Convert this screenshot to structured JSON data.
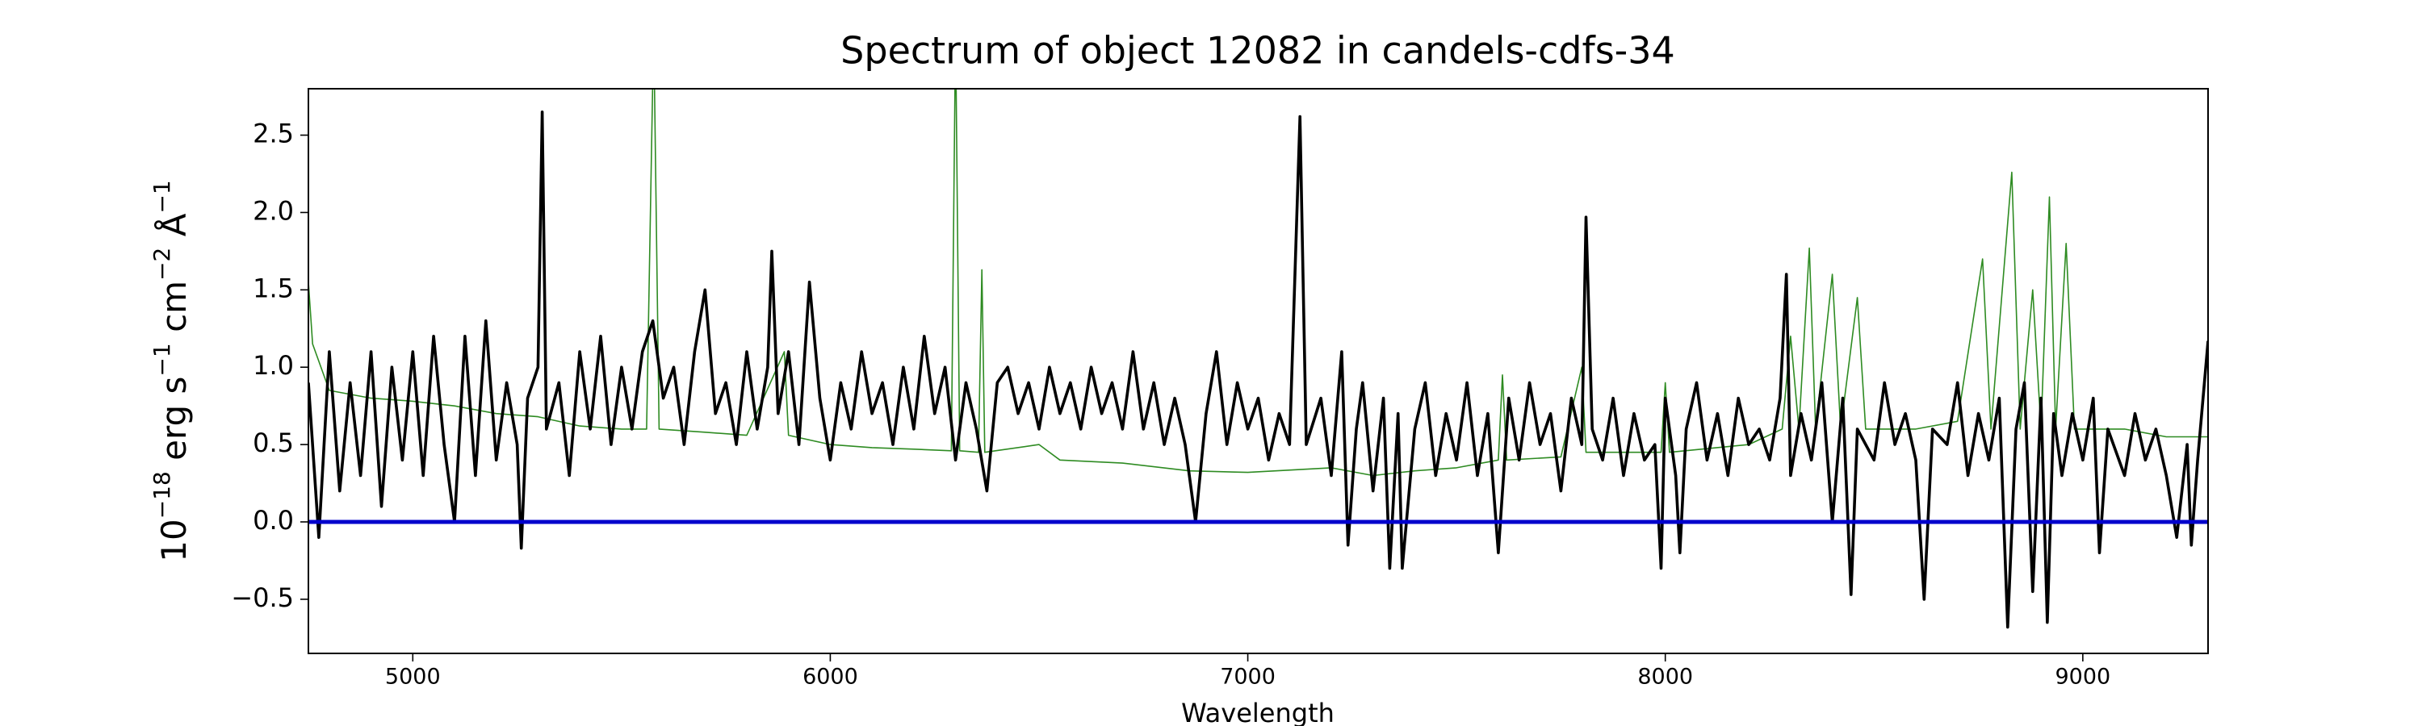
{
  "chart_data": {
    "type": "line",
    "title": "Spectrum of object 12082 in candels-cdfs-34",
    "xlabel": "Wavelength",
    "ylabel": [
      {
        "text": "10",
        "sup": "−18"
      },
      {
        "text": " erg s",
        "sup": "−1"
      },
      {
        "text": " cm",
        "sup": "−2"
      },
      {
        "text": " Å",
        "sup": "−1"
      }
    ],
    "xlim": [
      4750,
      9300
    ],
    "ylim": [
      -0.85,
      2.8
    ],
    "xticks": [
      5000,
      6000,
      7000,
      8000,
      9000
    ],
    "yticks": [
      {
        "value": -0.5,
        "label": "−0.5"
      },
      {
        "value": 0,
        "label": "0.0"
      },
      0.5,
      {
        "value": 1,
        "label": "1.0"
      },
      1.5,
      {
        "value": 2,
        "label": "2.0"
      },
      2.5
    ],
    "grid": false,
    "series": [
      {
        "color": "#2e8b22",
        "width": "thin",
        "x": [
          4750,
          4760,
          4800,
          4900,
          5000,
          5100,
          5200,
          5300,
          5400,
          5500,
          5560,
          5577,
          5590,
          5700,
          5800,
          5890,
          5900,
          6000,
          6100,
          6200,
          6290,
          6300,
          6310,
          6355,
          6363,
          6370,
          6500,
          6550,
          6700,
          6860,
          7000,
          7200,
          7300,
          7400,
          7500,
          7600,
          7610,
          7620,
          7750,
          7800,
          7810,
          7900,
          7990,
          8000,
          8010,
          8200,
          8280,
          8300,
          8320,
          8345,
          8360,
          8400,
          8420,
          8460,
          8480,
          8600,
          8700,
          8760,
          8780,
          8830,
          8850,
          8880,
          8900,
          8920,
          8935,
          8960,
          8980,
          9100,
          9200,
          9300
        ],
        "values": [
          1.55,
          1.15,
          0.85,
          0.8,
          0.78,
          0.75,
          0.7,
          0.68,
          0.62,
          0.6,
          0.6,
          3.2,
          0.6,
          0.58,
          0.56,
          1.1,
          0.56,
          0.5,
          0.48,
          0.47,
          0.46,
          3.2,
          0.46,
          0.45,
          1.63,
          0.45,
          0.5,
          0.4,
          0.38,
          0.33,
          0.32,
          0.35,
          0.3,
          0.33,
          0.35,
          0.4,
          0.95,
          0.4,
          0.42,
          1.0,
          0.45,
          0.45,
          0.45,
          0.9,
          0.45,
          0.5,
          0.6,
          1.2,
          0.6,
          1.77,
          0.6,
          1.6,
          0.6,
          1.45,
          0.6,
          0.6,
          0.65,
          1.7,
          0.6,
          2.26,
          0.6,
          1.5,
          0.6,
          2.1,
          0.6,
          1.8,
          0.6,
          0.6,
          0.55,
          0.55
        ]
      },
      {
        "color": "#000000",
        "width": "medium",
        "x": [
          4750,
          4775,
          4800,
          4825,
          4850,
          4875,
          4900,
          4925,
          4950,
          4975,
          5000,
          5025,
          5050,
          5075,
          5100,
          5125,
          5150,
          5175,
          5200,
          5225,
          5250,
          5260,
          5275,
          5300,
          5310,
          5320,
          5350,
          5375,
          5400,
          5425,
          5450,
          5475,
          5500,
          5525,
          5550,
          5575,
          5600,
          5625,
          5650,
          5675,
          5700,
          5725,
          5750,
          5775,
          5800,
          5825,
          5850,
          5860,
          5875,
          5900,
          5925,
          5950,
          5975,
          6000,
          6025,
          6050,
          6075,
          6100,
          6125,
          6150,
          6175,
          6200,
          6225,
          6250,
          6275,
          6300,
          6325,
          6350,
          6375,
          6400,
          6425,
          6450,
          6475,
          6500,
          6525,
          6550,
          6575,
          6600,
          6625,
          6650,
          6675,
          6700,
          6725,
          6750,
          6775,
          6800,
          6825,
          6850,
          6875,
          6900,
          6925,
          6950,
          6975,
          7000,
          7025,
          7050,
          7075,
          7100,
          7125,
          7140,
          7175,
          7200,
          7225,
          7240,
          7260,
          7275,
          7300,
          7325,
          7340,
          7360,
          7370,
          7400,
          7425,
          7450,
          7475,
          7500,
          7525,
          7550,
          7575,
          7600,
          7625,
          7650,
          7675,
          7700,
          7725,
          7750,
          7775,
          7800,
          7810,
          7825,
          7850,
          7875,
          7900,
          7925,
          7950,
          7975,
          7990,
          8000,
          8025,
          8035,
          8050,
          8075,
          8100,
          8125,
          8150,
          8175,
          8200,
          8225,
          8250,
          8275,
          8290,
          8300,
          8325,
          8350,
          8375,
          8400,
          8425,
          8445,
          8460,
          8500,
          8525,
          8550,
          8575,
          8600,
          8620,
          8640,
          8675,
          8700,
          8725,
          8750,
          8775,
          8800,
          8820,
          8840,
          8860,
          8880,
          8900,
          8915,
          8930,
          8950,
          8975,
          9000,
          9025,
          9040,
          9060,
          9100,
          9125,
          9150,
          9175,
          9200,
          9225,
          9250,
          9260,
          9275,
          9300
        ],
        "values": [
          0.9,
          -0.1,
          1.1,
          0.2,
          0.9,
          0.3,
          1.1,
          0.1,
          1.0,
          0.4,
          1.1,
          0.3,
          1.2,
          0.5,
          0.0,
          1.2,
          0.3,
          1.3,
          0.4,
          0.9,
          0.5,
          -0.17,
          0.8,
          1.0,
          2.65,
          0.6,
          0.9,
          0.3,
          1.1,
          0.6,
          1.2,
          0.5,
          1.0,
          0.6,
          1.1,
          1.3,
          0.8,
          1.0,
          0.5,
          1.1,
          1.5,
          0.7,
          0.9,
          0.5,
          1.1,
          0.6,
          1.0,
          1.75,
          0.7,
          1.1,
          0.5,
          1.55,
          0.8,
          0.4,
          0.9,
          0.6,
          1.1,
          0.7,
          0.9,
          0.5,
          1.0,
          0.6,
          1.2,
          0.7,
          1.0,
          0.4,
          0.9,
          0.6,
          0.2,
          0.9,
          1.0,
          0.7,
          0.9,
          0.6,
          1.0,
          0.7,
          0.9,
          0.6,
          1.0,
          0.7,
          0.9,
          0.6,
          1.1,
          0.6,
          0.9,
          0.5,
          0.8,
          0.5,
          0.0,
          0.7,
          1.1,
          0.5,
          0.9,
          0.6,
          0.8,
          0.4,
          0.7,
          0.5,
          2.62,
          0.5,
          0.8,
          0.3,
          1.1,
          -0.15,
          0.6,
          0.9,
          0.2,
          0.8,
          -0.3,
          0.7,
          -0.3,
          0.6,
          0.9,
          0.3,
          0.7,
          0.4,
          0.9,
          0.3,
          0.7,
          -0.2,
          0.8,
          0.4,
          0.9,
          0.5,
          0.7,
          0.2,
          0.8,
          0.5,
          1.97,
          0.6,
          0.4,
          0.8,
          0.3,
          0.7,
          0.4,
          0.5,
          -0.3,
          0.8,
          0.3,
          -0.2,
          0.6,
          0.9,
          0.4,
          0.7,
          0.3,
          0.8,
          0.5,
          0.6,
          0.4,
          0.8,
          1.6,
          0.3,
          0.7,
          0.4,
          0.9,
          0.0,
          0.8,
          -0.47,
          0.6,
          0.4,
          0.9,
          0.5,
          0.7,
          0.4,
          -0.5,
          0.6,
          0.5,
          0.9,
          0.3,
          0.7,
          0.4,
          0.8,
          -0.68,
          0.6,
          0.9,
          -0.45,
          0.8,
          -0.65,
          0.7,
          0.3,
          0.7,
          0.4,
          0.8,
          -0.2,
          0.6,
          0.3,
          0.7,
          0.4,
          0.6,
          0.3,
          -0.1,
          0.5,
          -0.15,
          0.4,
          1.17
        ]
      },
      {
        "color": "#0000cc",
        "width": "thick",
        "x": [
          4750,
          9300
        ],
        "values": [
          0,
          0
        ]
      }
    ]
  }
}
